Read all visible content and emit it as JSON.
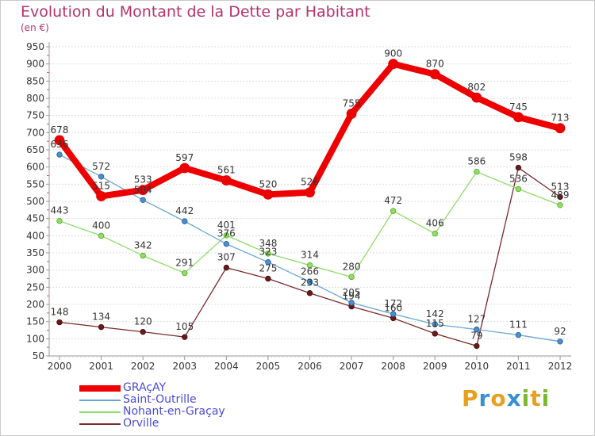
{
  "header": {
    "title": "Evolution du Montant de la Dette par Habitant",
    "subtitle": "(en €)"
  },
  "brand": {
    "letters": [
      "P",
      "r",
      "o",
      "x",
      "i",
      "t",
      "i"
    ],
    "colors": [
      "#e8a020",
      "#3a8fd0",
      "#e8a020",
      "#3a8fd0",
      "#7ab830",
      "#e8a020",
      "#7ab830"
    ]
  },
  "chart_data": {
    "type": "line",
    "title": "Evolution du Montant de la Dette par Habitant",
    "subtitle": "(en €)",
    "xlabel": "",
    "ylabel": "",
    "x": [
      "2000",
      "2001",
      "2002",
      "2003",
      "2004",
      "2005",
      "2006",
      "2007",
      "2008",
      "2009",
      "2010",
      "2011",
      "2012"
    ],
    "ylim": [
      50,
      950
    ],
    "yticks": [
      50,
      100,
      150,
      200,
      250,
      300,
      350,
      400,
      450,
      500,
      550,
      600,
      650,
      700,
      750,
      800,
      850,
      900,
      950
    ],
    "grid": "horizontal dotted",
    "legend_position": "bottom-left",
    "series": [
      {
        "name": "GRAçAY",
        "color": "#ee0000",
        "values": [
          678,
          515,
          533,
          597,
          561,
          520,
          526,
          755,
          900,
          870,
          802,
          745,
          713
        ],
        "labels": [
          "678",
          "515",
          "533",
          "597",
          "561",
          "520",
          "526",
          "755",
          "900",
          "870",
          "802",
          "745",
          "713"
        ]
      },
      {
        "name": "Saint-Outrille",
        "color": "#6aa6d8",
        "values": [
          636,
          572,
          504,
          442,
          376,
          323,
          266,
          205,
          172,
          142,
          127,
          111,
          92
        ],
        "labels": [
          "636",
          "572",
          "504",
          "442",
          "376",
          "323",
          "266",
          "205",
          "172",
          "142",
          "127",
          "111",
          "92"
        ]
      },
      {
        "name": "Nohant-en-Graçay",
        "color": "#8fdc6a",
        "values": [
          443,
          400,
          342,
          291,
          401,
          348,
          314,
          280,
          472,
          406,
          586,
          536,
          489
        ],
        "labels": [
          "443",
          "400",
          "342",
          "291",
          "401",
          "348",
          "314",
          "280",
          "472",
          "406",
          "586",
          "536",
          "489"
        ]
      },
      {
        "name": "Orville",
        "color": "#7a2a2a",
        "values": [
          148,
          134,
          120,
          105,
          307,
          275,
          233,
          194,
          160,
          115,
          79,
          598,
          513
        ],
        "labels": [
          "148",
          "134",
          "120",
          "105",
          "307",
          "275",
          "233",
          "194",
          "160",
          "115",
          "79",
          "598",
          "513"
        ]
      }
    ]
  }
}
